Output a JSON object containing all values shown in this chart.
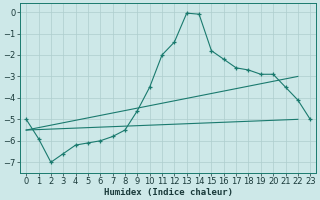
{
  "xlabel": "Humidex (Indice chaleur)",
  "background_color": "#cde8e8",
  "line_color": "#1a7a6e",
  "grid_color": "#aecece",
  "xlim": [
    -0.5,
    23.5
  ],
  "ylim": [
    -7.5,
    0.4
  ],
  "yticks": [
    0,
    -1,
    -2,
    -3,
    -4,
    -5,
    -6,
    -7
  ],
  "xticks": [
    0,
    1,
    2,
    3,
    4,
    5,
    6,
    7,
    8,
    9,
    10,
    11,
    12,
    13,
    14,
    15,
    16,
    17,
    18,
    19,
    20,
    21,
    22,
    23
  ],
  "series1_x": [
    0,
    1,
    2,
    3,
    4,
    5,
    6,
    7,
    8,
    9,
    10,
    11,
    12,
    13,
    14,
    15,
    16,
    17,
    18,
    19,
    20,
    21,
    22,
    23
  ],
  "series1_y": [
    -5.0,
    -5.9,
    -7.0,
    -6.6,
    -6.2,
    -6.1,
    -6.0,
    -5.8,
    -5.5,
    -4.6,
    -3.5,
    -2.0,
    -1.4,
    -0.05,
    -0.1,
    -1.8,
    -2.2,
    -2.6,
    -2.7,
    -2.9,
    -2.9,
    -3.5,
    -4.1,
    -5.0
  ],
  "series2_x": [
    0,
    22
  ],
  "series2_y": [
    -5.5,
    -3.0
  ],
  "series3_x": [
    0,
    22
  ],
  "series3_y": [
    -5.5,
    -5.0
  ],
  "xlabel_fontsize": 6.5,
  "tick_fontsize": 6
}
